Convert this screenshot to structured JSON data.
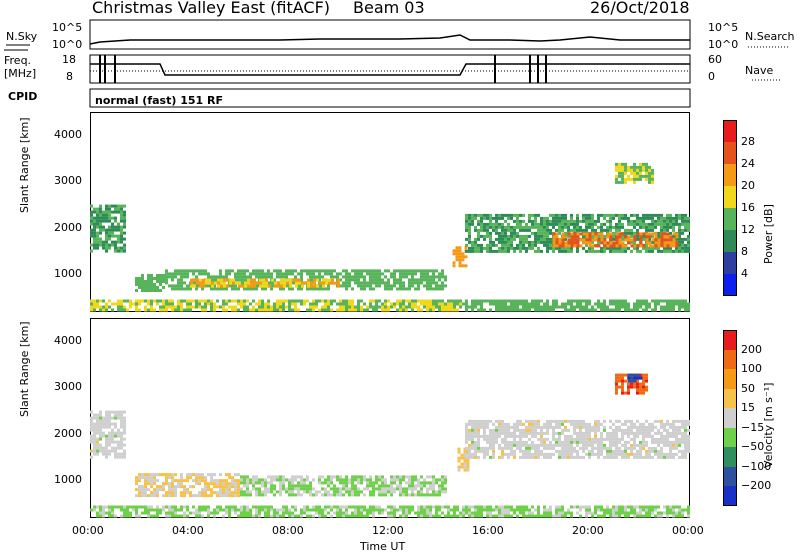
{
  "header": {
    "station": "Christmas Valley East (fitACF)",
    "beam": "Beam 03",
    "date": "26/Oct/2018"
  },
  "summary": {
    "nsky_label": "N.Sky",
    "nsearch_label": "N.Search",
    "freq_label": "Freq.\n[MHz]",
    "nave_label": "Nave",
    "cpid_label": "CPID",
    "noise_ticks": [
      "10^5",
      "10^0"
    ],
    "freq_ticks": [
      "18",
      "8"
    ],
    "nave_ticks": [
      "60",
      "0"
    ],
    "cpid_text": "normal (fast) 151 RF"
  },
  "colors": {
    "power": [
      "#0a1ff0",
      "#2f3f9f",
      "#2e8b57",
      "#58b45a",
      "#f2d81c",
      "#f59a16",
      "#e5521c",
      "#e81c1c"
    ],
    "velocity": [
      "#1830c8",
      "#2f4f9f",
      "#2f8f5f",
      "#6fd04a",
      "#cfcfcf",
      "#f7c24a",
      "#f59a16",
      "#f06a16",
      "#e81c1c"
    ]
  },
  "chart_data": [
    {
      "type": "heatmap",
      "title": "",
      "xlabel": "Time UT",
      "ylabel": "Slant Range [km]",
      "x_ticks": [
        "00:00",
        "04:00",
        "08:00",
        "12:00",
        "16:00",
        "20:00",
        "00:00"
      ],
      "y_ticks": [
        "1000",
        "2000",
        "3000",
        "4000"
      ],
      "ylim": [
        180,
        4500
      ],
      "colorbar": {
        "label": "Power [dB]",
        "ticks": [
          "28",
          "24",
          "20",
          "16",
          "12",
          "8",
          "4"
        ],
        "range": [
          0,
          32
        ]
      },
      "regions": [
        {
          "t0": 0.0,
          "t1": 1.4,
          "r0": 1500,
          "r1": 2500,
          "value": 12
        },
        {
          "t0": 1.8,
          "t1": 3.0,
          "r0": 650,
          "r1": 1000,
          "value": 14
        },
        {
          "t0": 3.0,
          "t1": 14.2,
          "r0": 700,
          "r1": 1100,
          "value": 14
        },
        {
          "t0": 4.0,
          "t1": 10.0,
          "r0": 750,
          "r1": 900,
          "value": 20
        },
        {
          "t0": 0.0,
          "t1": 15.0,
          "r0": 250,
          "r1": 450,
          "value": 16
        },
        {
          "t0": 14.5,
          "t1": 15.0,
          "r0": 1200,
          "r1": 1600,
          "value": 22
        },
        {
          "t0": 15.0,
          "t1": 24.0,
          "r0": 1500,
          "r1": 2300,
          "value": 12
        },
        {
          "t0": 18.5,
          "t1": 23.5,
          "r0": 1600,
          "r1": 1900,
          "value": 24
        },
        {
          "t0": 21.0,
          "t1": 22.5,
          "r0": 3000,
          "r1": 3400,
          "value": 16
        },
        {
          "t0": 15.0,
          "t1": 24.0,
          "r0": 250,
          "r1": 450,
          "value": 14
        }
      ]
    },
    {
      "type": "heatmap",
      "title": "",
      "xlabel": "Time UT",
      "ylabel": "Slant Range [km]",
      "x_ticks": [
        "00:00",
        "04:00",
        "08:00",
        "12:00",
        "16:00",
        "20:00",
        "00:00"
      ],
      "y_ticks": [
        "1000",
        "2000",
        "3000",
        "4000"
      ],
      "ylim": [
        180,
        4500
      ],
      "colorbar": {
        "label": "Velocity [m s⁻¹]",
        "ticks": [
          "200",
          "100",
          "50",
          "15",
          "−15",
          "−50",
          "−100",
          "−200"
        ],
        "range": [
          -250,
          250
        ]
      },
      "regions": [
        {
          "t0": 0.0,
          "t1": 1.4,
          "r0": 1500,
          "r1": 2500,
          "value": 0
        },
        {
          "t0": 1.8,
          "t1": 6.0,
          "r0": 650,
          "r1": 1150,
          "value": 30
        },
        {
          "t0": 6.0,
          "t1": 14.2,
          "r0": 700,
          "r1": 1100,
          "value": -30
        },
        {
          "t0": 0.0,
          "t1": 15.0,
          "r0": 250,
          "r1": 450,
          "value": -40
        },
        {
          "t0": 14.7,
          "t1": 15.1,
          "r0": 1200,
          "r1": 1700,
          "value": 40
        },
        {
          "t0": 15.0,
          "t1": 24.0,
          "r0": 1500,
          "r1": 2300,
          "value": 0
        },
        {
          "t0": 21.0,
          "t1": 22.3,
          "r0": 2900,
          "r1": 3300,
          "value": 180
        },
        {
          "t0": 21.5,
          "t1": 22.0,
          "r0": 3150,
          "r1": 3300,
          "value": -180
        },
        {
          "t0": 15.0,
          "t1": 24.0,
          "r0": 250,
          "r1": 450,
          "value": -40
        }
      ]
    }
  ]
}
